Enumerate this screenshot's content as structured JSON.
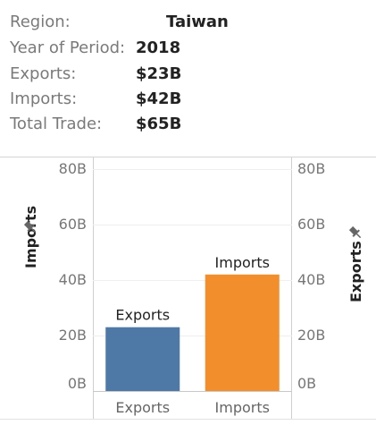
{
  "tooltip": {
    "rows": [
      {
        "label": "Region:",
        "value": "Taiwan"
      },
      {
        "label": "Year of Period:",
        "value": "2018"
      },
      {
        "label": "Exports:",
        "value": "$23B"
      },
      {
        "label": "Imports:",
        "value": "$42B"
      },
      {
        "label": "Total Trade:",
        "value": "$65B"
      }
    ]
  },
  "chart_data": {
    "type": "bar",
    "categories": [
      "Exports",
      "Imports"
    ],
    "values": [
      23,
      42
    ],
    "data_labels": [
      "Exports",
      "Imports"
    ],
    "colors": [
      "#4e79a7",
      "#f28e2b"
    ],
    "ylim": [
      0,
      80
    ],
    "left_axis": {
      "title": "Imports",
      "ticks": [
        "0B",
        "20B",
        "40B",
        "60B",
        "80B"
      ],
      "tick_values": [
        0,
        20,
        40,
        60,
        80
      ]
    },
    "right_axis": {
      "title": "Exports",
      "ticks": [
        "0B",
        "20B",
        "40B",
        "60B",
        "80B"
      ],
      "tick_values": [
        0,
        20,
        40,
        60,
        80
      ]
    },
    "pin_icon": "pin-icon",
    "grid": true
  }
}
